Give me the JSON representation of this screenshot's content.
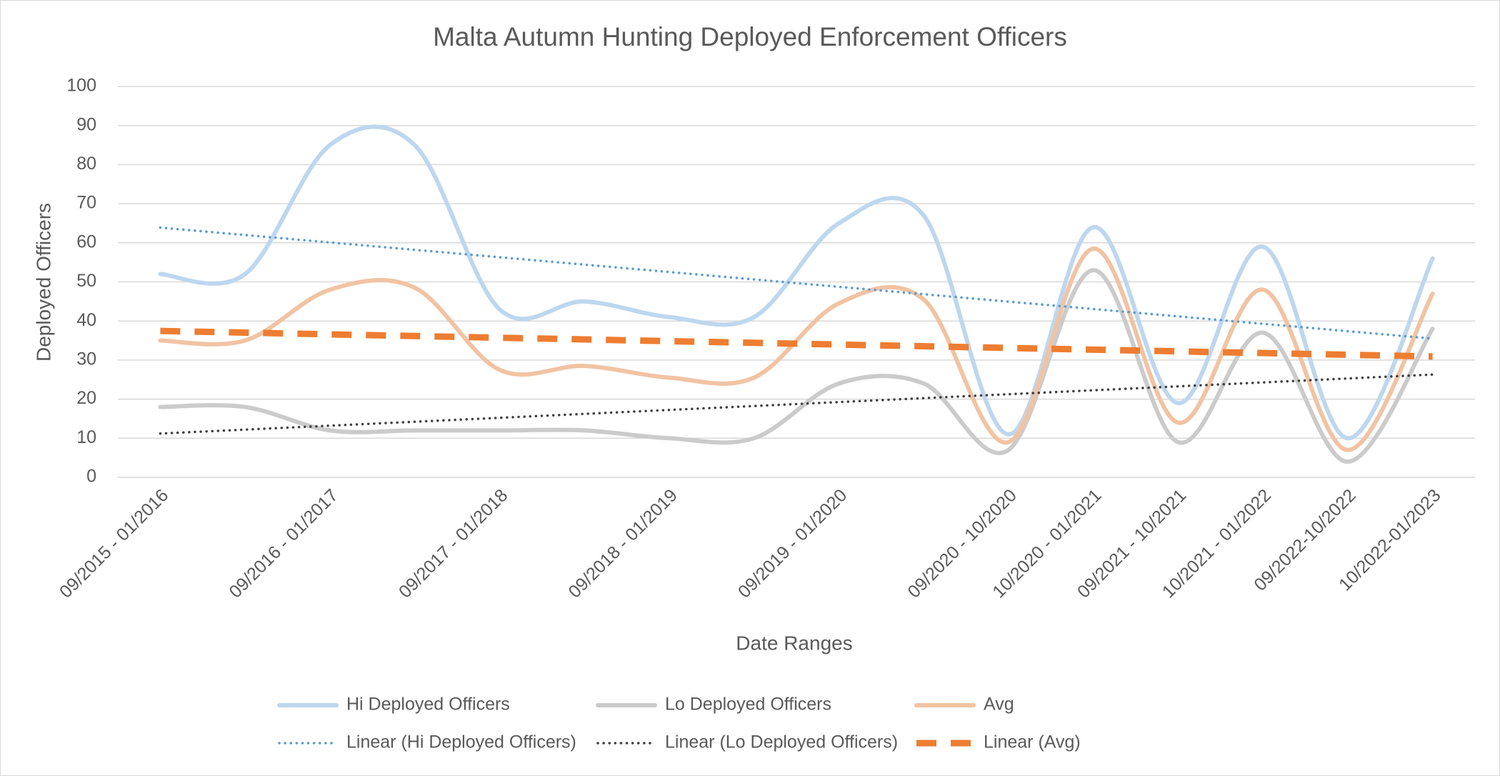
{
  "chart_data": {
    "type": "line",
    "title": "Malta Autumn Hunting Deployed Enforcement Officers",
    "x_label": "Date Ranges",
    "y_label": "Deployed Officers",
    "categories": [
      "09/2015 - 01/2016",
      null,
      "09/2016 - 01/2017",
      null,
      "09/2017 - 01/2018",
      null,
      "09/2018 - 01/2019",
      null,
      "09/2019 - 01/2020",
      null,
      "09/2020 - 10/2020",
      "10/2020 - 01/2021",
      "09/2021 - 10/2021",
      "10/2021 - 01/2022",
      "09/2022-10/2022",
      "10/2022-01/2023"
    ],
    "series": [
      {
        "name": "Hi Deployed Officers",
        "color": "#bdd7ee",
        "values": [
          52,
          52,
          85,
          85,
          43,
          45,
          41,
          41,
          65,
          67,
          11,
          64,
          19,
          59,
          10,
          56
        ]
      },
      {
        "name": "Lo Deployed Officers",
        "color": "#cbcbcb",
        "values": [
          18,
          18,
          12,
          12,
          12,
          12,
          10,
          10,
          24,
          24,
          7,
          53,
          9,
          37,
          4,
          38
        ]
      },
      {
        "name": "Avg",
        "color": "#f1c3a3",
        "values": [
          35,
          35,
          48,
          48.5,
          27.5,
          28.5,
          25.5,
          25.5,
          44.5,
          45.5,
          9,
          58.5,
          14,
          48,
          7,
          47
        ]
      }
    ],
    "trendlines": [
      {
        "name": "Linear (Hi Deployed Officers)",
        "color": "#5b9bd5",
        "style": "dotted"
      },
      {
        "name": "Linear (Lo Deployed Officers)",
        "color": "#404040",
        "style": "dotted"
      },
      {
        "name": "Linear (Avg)",
        "color": "#ed7d31",
        "style": "dashed"
      }
    ],
    "ylim": [
      0,
      100
    ],
    "yticks": [
      0,
      10,
      20,
      30,
      40,
      50,
      60,
      70,
      80,
      90,
      100
    ],
    "grid": true,
    "legend": "bottom"
  }
}
